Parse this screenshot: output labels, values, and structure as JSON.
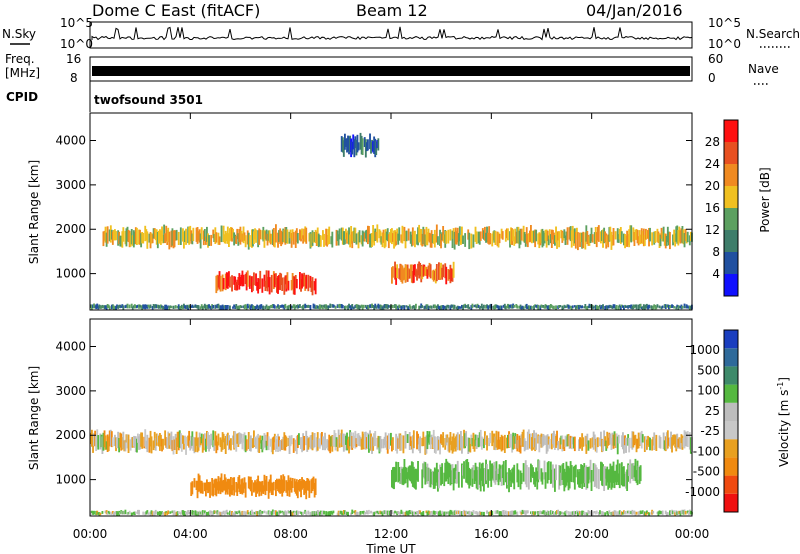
{
  "header": {
    "station": "Dome C East (fitACF)",
    "beam": "Beam 12",
    "date": "04/Jan/2016"
  },
  "labels": {
    "nsky": "N.Sky",
    "nsearch": "N.Search",
    "freq": "Freq.",
    "freq_unit": "[MHz]",
    "nave": "Nave",
    "cpid": "CPID",
    "cpid_value": "twofsound 3501",
    "x_axis": "Time UT",
    "power_axis": "Power [dB]",
    "velocity_axis": "Velocity [m s",
    "velocity_axis_sup": "-1",
    "velocity_axis_end": "]",
    "noise_left_top": "10^5",
    "noise_left_bottom": "10^0",
    "noise_right_top": "10^5",
    "noise_right_bottom": "10^0",
    "freq_left_top": "16",
    "freq_left_bottom": "8",
    "nave_right_top": "60",
    "nave_right_bottom": "0"
  },
  "colors": {
    "power_scale": [
      "#1010ff",
      "#2050a0",
      "#3e7d6a",
      "#5ca060",
      "#f0c020",
      "#f08a20",
      "#e85020",
      "#ff1010"
    ],
    "velocity_scale": [
      "#1a3ebf",
      "#2f6a9a",
      "#3e8a6a",
      "#55b840",
      "#bdbdbd",
      "#c8c8c8",
      "#e8a020",
      "#f08a10",
      "#f04a10",
      "#f01010"
    ]
  },
  "chart_data": [
    {
      "type": "heatmap",
      "name": "Power",
      "title": "",
      "xlabel": "Time UT",
      "ylabel": "Slant Range [km]",
      "x_ticks": [
        "00:00",
        "04:00",
        "08:00",
        "12:00",
        "16:00",
        "20:00",
        "00:00"
      ],
      "y_ticks": [
        1000,
        2000,
        3000,
        4000
      ],
      "ylim": [
        180,
        4620
      ],
      "xlim_hours": [
        0,
        24
      ],
      "colorbar": {
        "label": "Power [dB]",
        "ticks": [
          4,
          8,
          12,
          16,
          20,
          24,
          28
        ],
        "range": [
          0,
          32
        ]
      },
      "bands": [
        {
          "start_h": 0.5,
          "end_h": 24,
          "range_km": 1820,
          "width_km": 300,
          "value_db": 18
        },
        {
          "start_h": 5.0,
          "end_h": 9.0,
          "range_km": 800,
          "width_km": 300,
          "value_db": 28
        },
        {
          "start_h": 12.0,
          "end_h": 14.5,
          "range_km": 1000,
          "width_km": 300,
          "value_db": 24
        },
        {
          "start_h": 0.0,
          "end_h": 24,
          "range_km": 250,
          "width_km": 80,
          "value_db": 10
        },
        {
          "start_h": 10.0,
          "end_h": 11.5,
          "range_km": 3900,
          "width_km": 300,
          "value_db": 8
        }
      ]
    },
    {
      "type": "heatmap",
      "name": "Velocity",
      "title": "",
      "xlabel": "Time UT",
      "ylabel": "Slant Range [km]",
      "x_ticks": [
        "00:00",
        "04:00",
        "08:00",
        "12:00",
        "16:00",
        "20:00",
        "00:00"
      ],
      "y_ticks": [
        1000,
        2000,
        3000,
        4000
      ],
      "ylim": [
        180,
        4620
      ],
      "xlim_hours": [
        0,
        24
      ],
      "colorbar": {
        "label": "Velocity [m s-1]",
        "ticks": [
          1000,
          500,
          100,
          25,
          -25,
          -100,
          -500,
          -1000
        ]
      },
      "bands": [
        {
          "start_h": 0.0,
          "end_h": 24,
          "range_km": 1850,
          "width_km": 300,
          "value_ms": 0
        },
        {
          "start_h": 4.0,
          "end_h": 9.0,
          "range_km": 850,
          "width_km": 300,
          "value_ms": -300
        },
        {
          "start_h": 12.0,
          "end_h": 22.0,
          "range_km": 1100,
          "width_km": 400,
          "value_ms": 150
        },
        {
          "start_h": 0.0,
          "end_h": 24,
          "range_km": 250,
          "width_km": 80,
          "value_ms": 80
        }
      ]
    }
  ]
}
